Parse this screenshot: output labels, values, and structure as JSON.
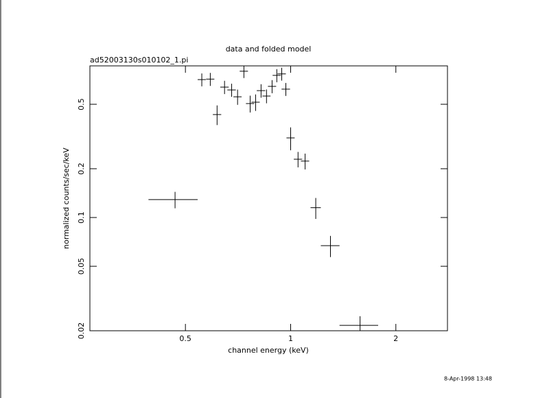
{
  "chart_data": {
    "type": "scatter",
    "title": "data and folded model",
    "subtitle": "ad52003130s010102_1.pi",
    "xlabel": "channel energy (keV)",
    "ylabel": "normalized counts/sec/keV",
    "x": [
      0.467,
      0.557,
      0.589,
      0.616,
      0.647,
      0.678,
      0.705,
      0.735,
      0.766,
      0.794,
      0.823,
      0.853,
      0.885,
      0.913,
      0.943,
      0.969,
      1.0,
      1.05,
      1.1,
      1.18,
      1.3,
      1.58
    ],
    "xerr": [
      0.075,
      0.015,
      0.016,
      0.017,
      0.018,
      0.019,
      0.019,
      0.02,
      0.021,
      0.022,
      0.023,
      0.023,
      0.024,
      0.025,
      0.026,
      0.027,
      0.027,
      0.029,
      0.03,
      0.04,
      0.08,
      0.2
    ],
    "y": [
      0.129,
      0.71,
      0.715,
      0.432,
      0.638,
      0.613,
      0.556,
      0.8,
      0.505,
      0.515,
      0.607,
      0.562,
      0.645,
      0.754,
      0.77,
      0.62,
      0.31,
      0.229,
      0.223,
      0.115,
      0.067,
      0.0216
    ],
    "yerr": [
      0.015,
      0.065,
      0.066,
      0.06,
      0.06,
      0.057,
      0.06,
      0.074,
      0.06,
      0.06,
      0.058,
      0.055,
      0.06,
      0.07,
      0.07,
      0.057,
      0.05,
      0.025,
      0.025,
      0.017,
      0.01,
      0.003
    ],
    "xlim": [
      0.2665,
      2.81
    ],
    "ylim": [
      0.02,
      0.863
    ],
    "xticks": [
      0.5,
      1,
      2
    ],
    "yticks": [
      0.02,
      0.05,
      0.1,
      0.2,
      0.5
    ],
    "xscale": "log",
    "yscale": "log",
    "color": "#000000"
  },
  "footer": {
    "timestamp": "8-Apr-1998 13:48"
  }
}
